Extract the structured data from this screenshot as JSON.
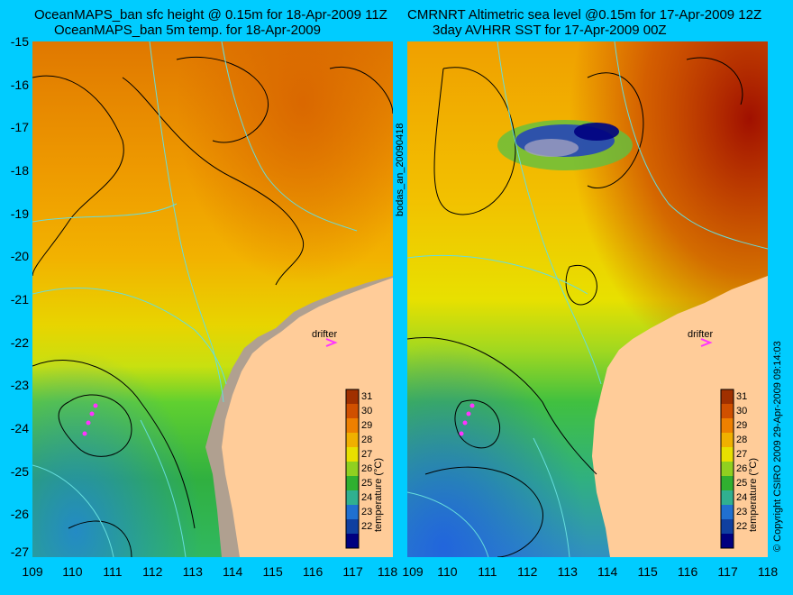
{
  "left_title": {
    "line1": "OceanMAPS_ban sfc height @ 0.15m for 18-Apr-2009 11Z",
    "line2": "OceanMAPS_ban 5m temp. for 18-Apr-2009"
  },
  "right_title": {
    "line1": "CMRNRT Altimetric sea level  @0.15m  for 17-Apr-2009 12Z",
    "line2": "3day AVHRR SST for 17-Apr-2009 00Z"
  },
  "y_ticks": [
    "-15",
    "-16",
    "-17",
    "-18",
    "-19",
    "-20",
    "-21",
    "-22",
    "-23",
    "-24",
    "-25",
    "-26",
    "-27"
  ],
  "x_ticks_left": [
    "109",
    "110",
    "111",
    "112",
    "113",
    "114",
    "115",
    "116",
    "117",
    "118"
  ],
  "x_ticks_right": [
    "109",
    "110",
    "111",
    "112",
    "113",
    "114",
    "115",
    "116",
    "117",
    "118"
  ],
  "side_label": "bodas_an_20090418",
  "copyright": "© Copyright CSIRO 2009   29-Apr-2009 09:14:03",
  "drifter_label": "drifter",
  "colorbar": {
    "title": "temperature (°C)",
    "ticks": [
      "31",
      "30",
      "29",
      "28",
      "27",
      "26",
      "25",
      "24",
      "23",
      "22"
    ]
  },
  "colors": {
    "background": "#00ccff",
    "land": "#ffcc99",
    "contour": "#000000",
    "bathymetry": "#66dddd",
    "drifter": "#ff33ff"
  }
}
